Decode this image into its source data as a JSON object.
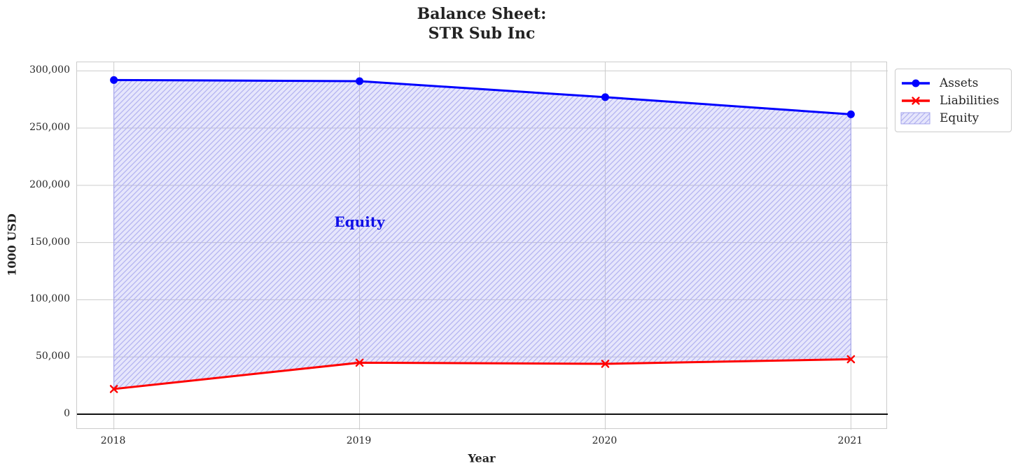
{
  "title_lines": [
    "Balance Sheet:",
    "STR Sub Inc"
  ],
  "chart_data": {
    "type": "line",
    "title": "Balance Sheet: STR Sub Inc",
    "xlabel": "Year",
    "ylabel": "1000 USD",
    "x": [
      2018,
      2019,
      2020,
      2021
    ],
    "series": [
      {
        "name": "Assets",
        "color": "#0000ff",
        "marker": "circle",
        "values": [
          292000,
          291000,
          277000,
          262000
        ]
      },
      {
        "name": "Liabilities",
        "color": "#ff0000",
        "marker": "x",
        "values": [
          22000,
          45000,
          44000,
          48000
        ]
      }
    ],
    "area": {
      "name": "Equity",
      "between": [
        "Assets",
        "Liabilities"
      ],
      "fill_color": "#7777ee",
      "fill_opacity": 0.18,
      "hatch": "/",
      "hatch_color": "#b4b4f0",
      "edge_color": "#a2a2ec"
    },
    "annotation": {
      "text": "Equity",
      "x": 2019,
      "y": 168000,
      "color": "#0f0fe8"
    },
    "xlim": [
      2017.85,
      2021.15
    ],
    "ylim": [
      -13500,
      307500
    ],
    "xticks": [
      2018,
      2019,
      2020,
      2021
    ],
    "xtick_labels": [
      "2018",
      "2019",
      "2020",
      "2021"
    ],
    "yticks": [
      0,
      50000,
      100000,
      150000,
      200000,
      250000,
      300000
    ],
    "ytick_labels": [
      "0",
      "50,000",
      "100,000",
      "150,000",
      "200,000",
      "250,000",
      "300,000"
    ],
    "grid": true,
    "grid_color": "#cccccc",
    "zero_line_color": "#000000",
    "legend": {
      "position": "outside-top-right",
      "entries": [
        {
          "label": "Assets",
          "type": "line-circle",
          "color": "#0000ff"
        },
        {
          "label": "Liabilities",
          "type": "line-x",
          "color": "#ff0000"
        },
        {
          "label": "Equity",
          "type": "patch",
          "color": "#7777ee"
        }
      ]
    }
  }
}
